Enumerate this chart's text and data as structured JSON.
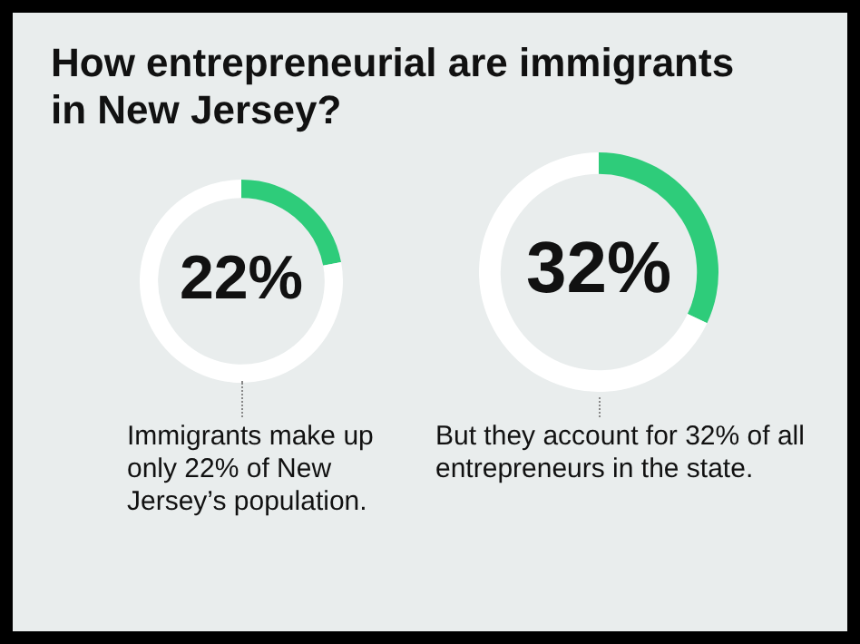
{
  "chart_data": [
    {
      "type": "donut",
      "title": "How entrepreneurial are immigrants in New Jersey?",
      "categories": [
        null,
        null
      ],
      "values": [
        22,
        78
      ],
      "colors": [
        "#2ecc7a",
        "#ffffff"
      ],
      "value_labels": [
        "22%",
        null
      ],
      "legend": false,
      "annotations": [
        "Immigrants make up only 22% of New Jersey’s population."
      ]
    },
    {
      "type": "donut",
      "categories": [
        null,
        null
      ],
      "values": [
        32,
        68
      ],
      "colors": [
        "#2ecc7a",
        "#ffffff"
      ],
      "value_labels": [
        "32%",
        null
      ],
      "legend": false,
      "annotations": [
        "But they account for 32% of all entrepreneurs in the state."
      ]
    }
  ]
}
